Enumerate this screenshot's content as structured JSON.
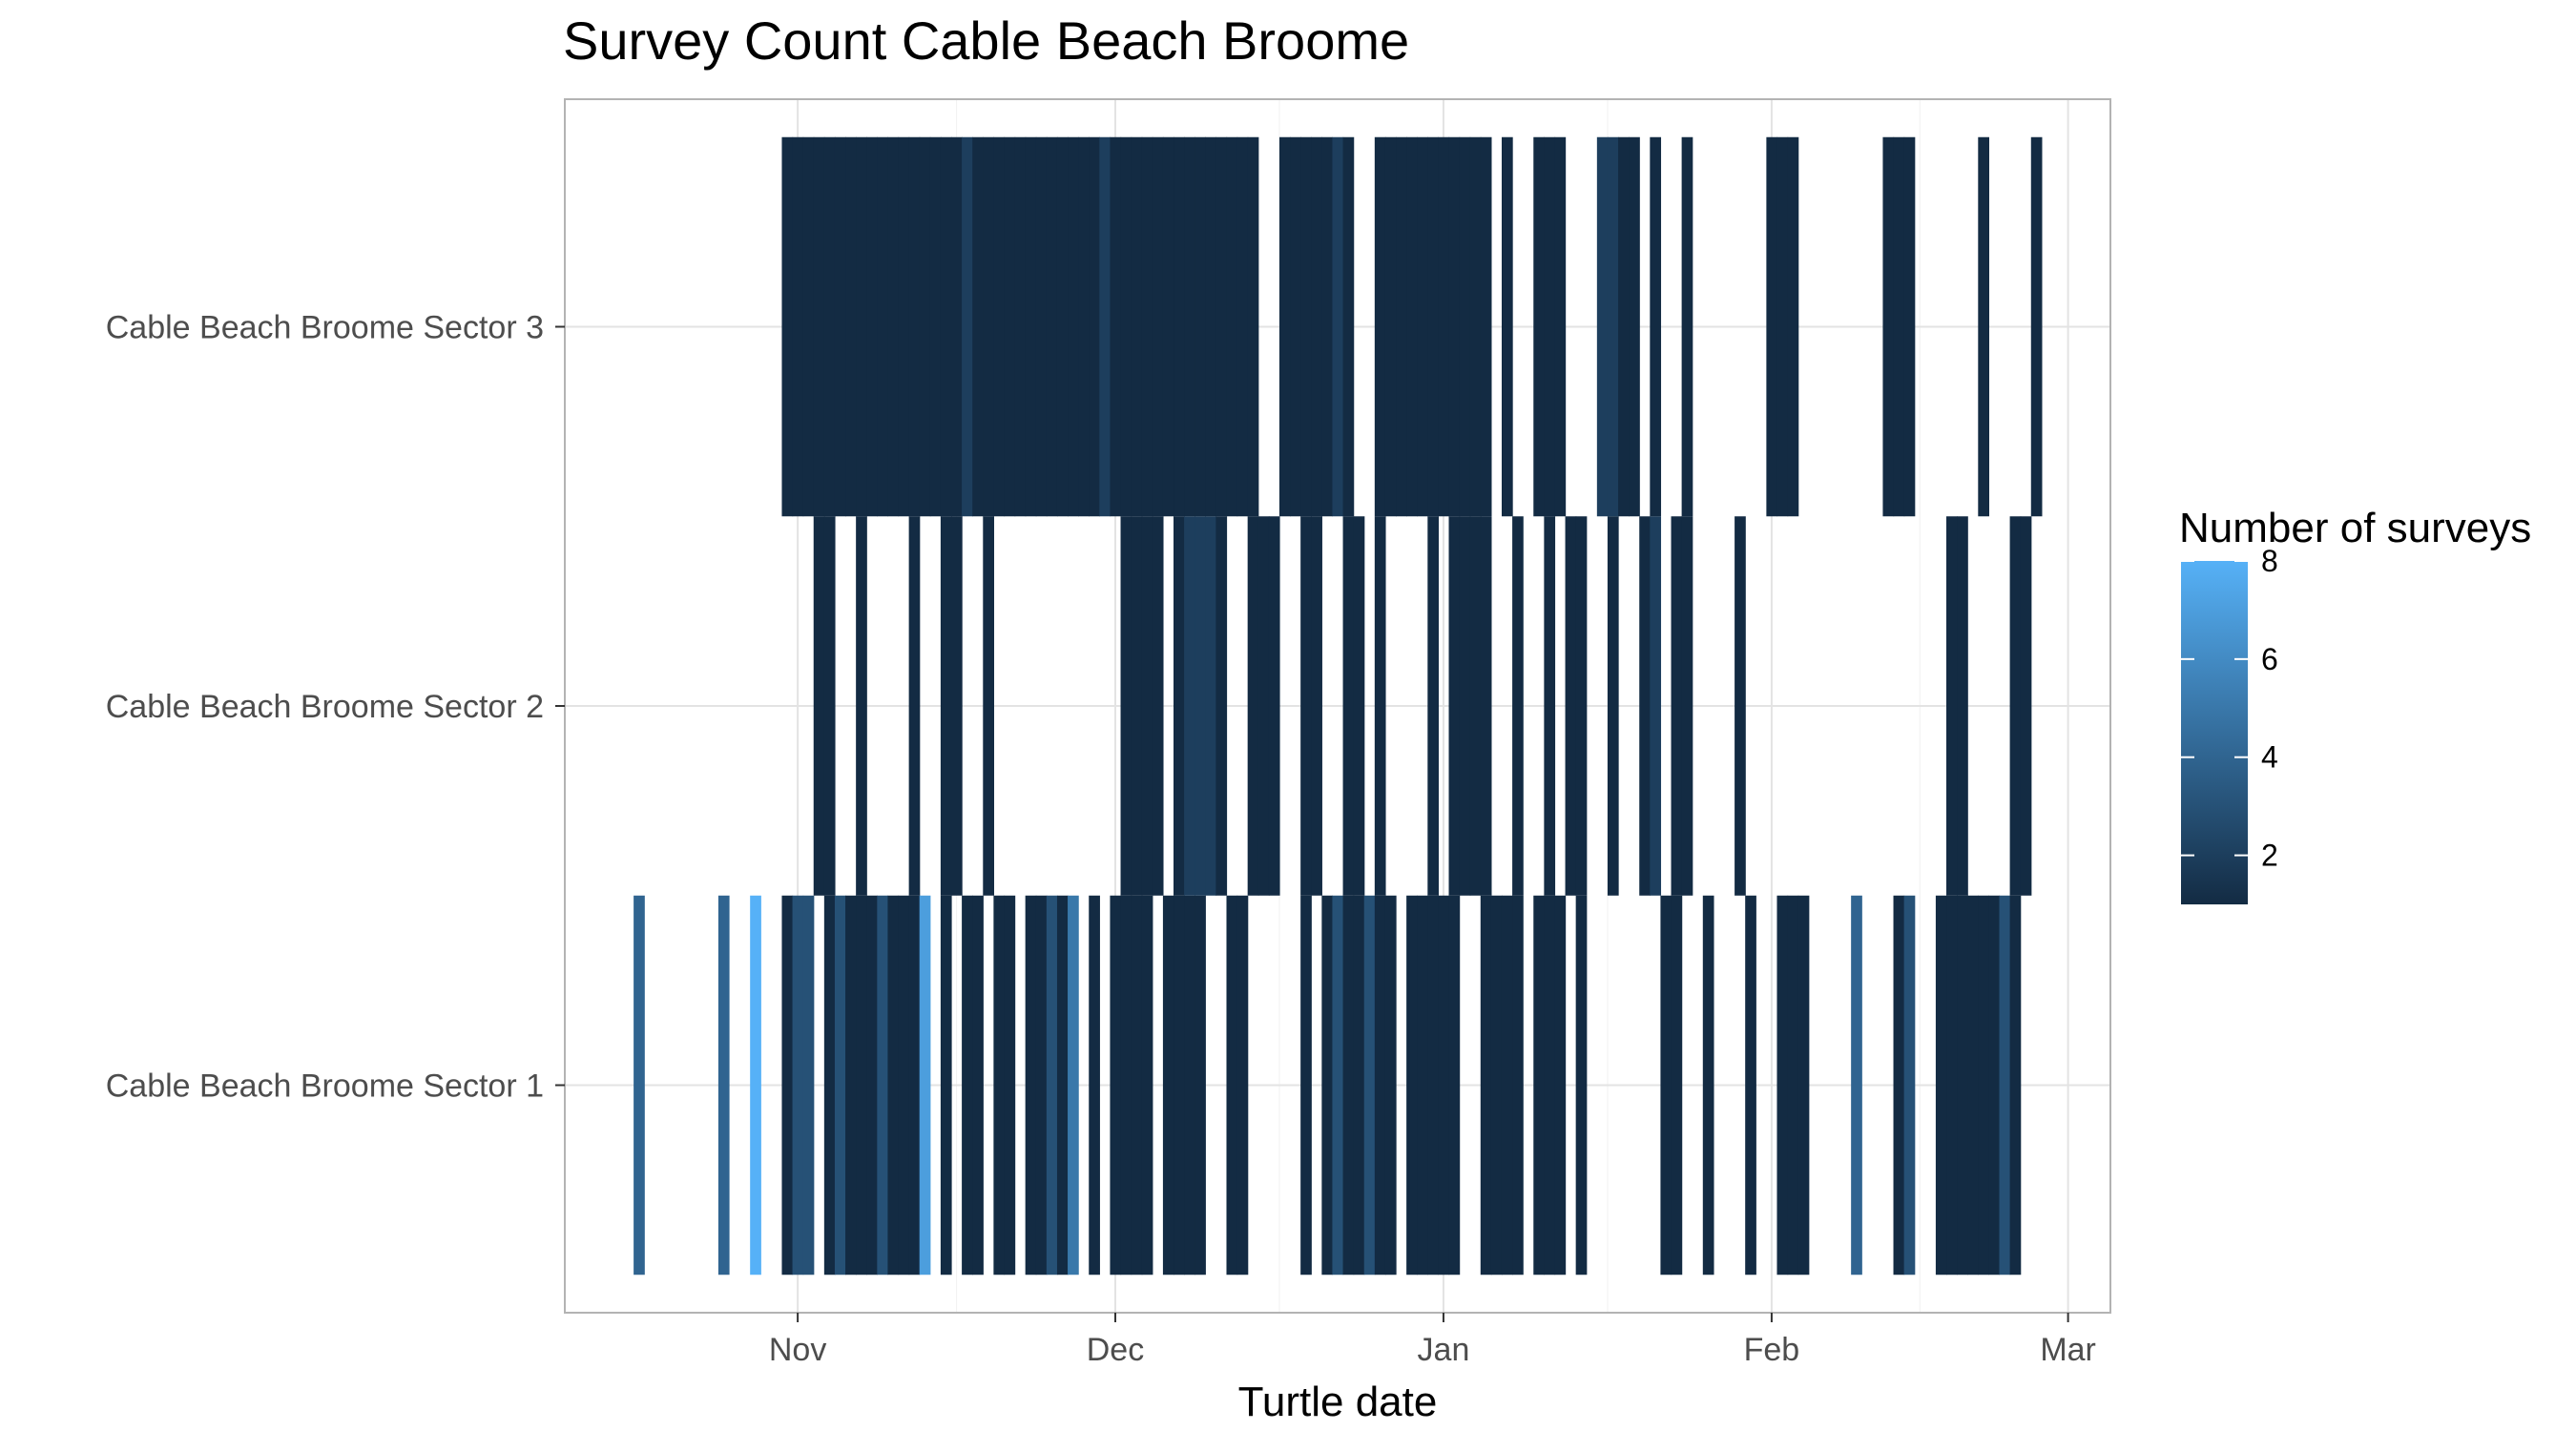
{
  "chart_data": {
    "type": "heatmap",
    "title": "Survey Count Cable Beach Broome",
    "xlabel": "Turtle date",
    "ylabel": "",
    "x_ticks": [
      "Nov",
      "Dec",
      "Jan",
      "Feb",
      "Mar"
    ],
    "x_tick_dates": [
      "2016-11-01",
      "2016-12-01",
      "2017-01-01",
      "2017-02-01",
      "2017-03-01"
    ],
    "xlim": [
      "2016-10-10",
      "2017-03-05"
    ],
    "y_categories": [
      "Cable Beach Broome Sector 1",
      "Cable Beach Broome Sector 2",
      "Cable Beach Broome Sector 3"
    ],
    "grid": true,
    "legend": {
      "title": "Number of surveys",
      "position": "right",
      "range": [
        1,
        8
      ],
      "ticks": [
        2,
        4,
        6,
        8
      ],
      "color_low": "#132B43",
      "color_high": "#56B1F7"
    },
    "series": [
      {
        "sector": "Cable Beach Broome Sector 1",
        "points": [
          [
            "2016-10-17",
            4
          ],
          [
            "2016-10-25",
            4
          ],
          [
            "2016-10-28",
            8
          ],
          [
            "2016-10-31",
            1
          ],
          [
            "2016-11-01",
            3
          ],
          [
            "2016-11-02",
            3
          ],
          [
            "2016-11-04",
            1
          ],
          [
            "2016-11-05",
            3
          ],
          [
            "2016-11-06",
            1
          ],
          [
            "2016-11-07",
            1
          ],
          [
            "2016-11-08",
            1
          ],
          [
            "2016-11-09",
            3
          ],
          [
            "2016-11-10",
            1
          ],
          [
            "2016-11-11",
            1
          ],
          [
            "2016-11-12",
            1
          ],
          [
            "2016-11-13",
            7
          ],
          [
            "2016-11-15",
            1
          ],
          [
            "2016-11-17",
            1
          ],
          [
            "2016-11-18",
            1
          ],
          [
            "2016-11-20",
            1
          ],
          [
            "2016-11-21",
            1
          ],
          [
            "2016-11-23",
            1
          ],
          [
            "2016-11-24",
            1
          ],
          [
            "2016-11-25",
            3
          ],
          [
            "2016-11-26",
            1
          ],
          [
            "2016-11-27",
            5
          ],
          [
            "2016-11-29",
            1
          ],
          [
            "2016-12-01",
            1
          ],
          [
            "2016-12-02",
            1
          ],
          [
            "2016-12-03",
            1
          ],
          [
            "2016-12-04",
            1
          ],
          [
            "2016-12-06",
            1
          ],
          [
            "2016-12-07",
            1
          ],
          [
            "2016-12-08",
            1
          ],
          [
            "2016-12-09",
            1
          ],
          [
            "2016-12-12",
            1
          ],
          [
            "2016-12-13",
            1
          ],
          [
            "2016-12-19",
            1
          ],
          [
            "2016-12-21",
            1
          ],
          [
            "2016-12-22",
            3
          ],
          [
            "2016-12-23",
            1
          ],
          [
            "2016-12-24",
            1
          ],
          [
            "2016-12-25",
            3
          ],
          [
            "2016-12-26",
            1
          ],
          [
            "2016-12-27",
            1
          ],
          [
            "2016-12-29",
            1
          ],
          [
            "2016-12-30",
            1
          ],
          [
            "2016-12-31",
            1
          ],
          [
            "2017-01-01",
            1
          ],
          [
            "2017-01-02",
            1
          ],
          [
            "2017-01-05",
            1
          ],
          [
            "2017-01-06",
            1
          ],
          [
            "2017-01-07",
            1
          ],
          [
            "2017-01-08",
            1
          ],
          [
            "2017-01-10",
            1
          ],
          [
            "2017-01-11",
            1
          ],
          [
            "2017-01-12",
            1
          ],
          [
            "2017-01-14",
            1
          ],
          [
            "2017-01-22",
            1
          ],
          [
            "2017-01-23",
            1
          ],
          [
            "2017-01-26",
            1
          ],
          [
            "2017-01-30",
            1
          ],
          [
            "2017-02-02",
            1
          ],
          [
            "2017-02-03",
            1
          ],
          [
            "2017-02-04",
            1
          ],
          [
            "2017-02-09",
            4
          ],
          [
            "2017-02-13",
            1
          ],
          [
            "2017-02-14",
            3
          ],
          [
            "2017-02-17",
            1
          ],
          [
            "2017-02-18",
            1
          ],
          [
            "2017-02-19",
            1
          ],
          [
            "2017-02-20",
            1
          ],
          [
            "2017-02-21",
            1
          ],
          [
            "2017-02-22",
            1
          ],
          [
            "2017-02-23",
            3
          ],
          [
            "2017-02-24",
            1
          ]
        ]
      },
      {
        "sector": "Cable Beach Broome Sector 2",
        "points": [
          [
            "2016-11-03",
            1
          ],
          [
            "2016-11-04",
            1
          ],
          [
            "2016-11-07",
            1
          ],
          [
            "2016-11-12",
            1
          ],
          [
            "2016-11-15",
            1
          ],
          [
            "2016-11-16",
            1
          ],
          [
            "2016-11-19",
            1
          ],
          [
            "2016-12-02",
            1
          ],
          [
            "2016-12-03",
            1
          ],
          [
            "2016-12-04",
            1
          ],
          [
            "2016-12-05",
            1
          ],
          [
            "2016-12-07",
            1
          ],
          [
            "2016-12-08",
            2
          ],
          [
            "2016-12-09",
            2
          ],
          [
            "2016-12-10",
            2
          ],
          [
            "2016-12-11",
            1
          ],
          [
            "2016-12-14",
            1
          ],
          [
            "2016-12-15",
            1
          ],
          [
            "2016-12-16",
            1
          ],
          [
            "2016-12-19",
            1
          ],
          [
            "2016-12-20",
            1
          ],
          [
            "2016-12-23",
            1
          ],
          [
            "2016-12-24",
            1
          ],
          [
            "2016-12-26",
            1
          ],
          [
            "2016-12-31",
            1
          ],
          [
            "2017-01-02",
            1
          ],
          [
            "2017-01-03",
            1
          ],
          [
            "2017-01-04",
            1
          ],
          [
            "2017-01-05",
            1
          ],
          [
            "2017-01-08",
            1
          ],
          [
            "2017-01-11",
            1
          ],
          [
            "2017-01-13",
            1
          ],
          [
            "2017-01-14",
            1
          ],
          [
            "2017-01-17",
            1
          ],
          [
            "2017-01-20",
            1
          ],
          [
            "2017-01-21",
            2
          ],
          [
            "2017-01-23",
            1
          ],
          [
            "2017-01-24",
            1
          ],
          [
            "2017-01-29",
            1
          ],
          [
            "2017-02-18",
            1
          ],
          [
            "2017-02-19",
            1
          ],
          [
            "2017-02-24",
            1
          ],
          [
            "2017-02-25",
            1
          ]
        ]
      },
      {
        "sector": "Cable Beach Broome Sector 3",
        "points": [
          [
            "2016-10-31",
            1
          ],
          [
            "2016-11-01",
            1
          ],
          [
            "2016-11-02",
            1
          ],
          [
            "2016-11-03",
            1
          ],
          [
            "2016-11-04",
            1
          ],
          [
            "2016-11-05",
            1
          ],
          [
            "2016-11-06",
            1
          ],
          [
            "2016-11-07",
            1
          ],
          [
            "2016-11-08",
            1
          ],
          [
            "2016-11-09",
            1
          ],
          [
            "2016-11-10",
            1
          ],
          [
            "2016-11-11",
            1
          ],
          [
            "2016-11-12",
            1
          ],
          [
            "2016-11-13",
            1
          ],
          [
            "2016-11-14",
            1
          ],
          [
            "2016-11-15",
            1
          ],
          [
            "2016-11-16",
            1
          ],
          [
            "2016-11-17",
            2
          ],
          [
            "2016-11-18",
            1
          ],
          [
            "2016-11-19",
            1
          ],
          [
            "2016-11-20",
            1
          ],
          [
            "2016-11-21",
            1
          ],
          [
            "2016-11-22",
            1
          ],
          [
            "2016-11-23",
            1
          ],
          [
            "2016-11-24",
            1
          ],
          [
            "2016-11-25",
            1
          ],
          [
            "2016-11-26",
            1
          ],
          [
            "2016-11-27",
            1
          ],
          [
            "2016-11-28",
            1
          ],
          [
            "2016-11-29",
            1
          ],
          [
            "2016-11-30",
            2
          ],
          [
            "2016-12-01",
            1
          ],
          [
            "2016-12-02",
            1
          ],
          [
            "2016-12-03",
            1
          ],
          [
            "2016-12-04",
            1
          ],
          [
            "2016-12-05",
            1
          ],
          [
            "2016-12-06",
            1
          ],
          [
            "2016-12-07",
            1
          ],
          [
            "2016-12-08",
            1
          ],
          [
            "2016-12-09",
            1
          ],
          [
            "2016-12-10",
            1
          ],
          [
            "2016-12-11",
            1
          ],
          [
            "2016-12-12",
            1
          ],
          [
            "2016-12-13",
            1
          ],
          [
            "2016-12-14",
            1
          ],
          [
            "2016-12-17",
            1
          ],
          [
            "2016-12-18",
            1
          ],
          [
            "2016-12-19",
            1
          ],
          [
            "2016-12-20",
            1
          ],
          [
            "2016-12-21",
            1
          ],
          [
            "2016-12-22",
            2
          ],
          [
            "2016-12-23",
            1
          ],
          [
            "2016-12-26",
            1
          ],
          [
            "2016-12-27",
            1
          ],
          [
            "2016-12-28",
            1
          ],
          [
            "2016-12-29",
            1
          ],
          [
            "2016-12-30",
            1
          ],
          [
            "2016-12-31",
            1
          ],
          [
            "2017-01-01",
            1
          ],
          [
            "2017-01-02",
            1
          ],
          [
            "2017-01-03",
            1
          ],
          [
            "2017-01-04",
            1
          ],
          [
            "2017-01-05",
            1
          ],
          [
            "2017-01-07",
            1
          ],
          [
            "2017-01-10",
            1
          ],
          [
            "2017-01-11",
            1
          ],
          [
            "2017-01-12",
            1
          ],
          [
            "2017-01-16",
            2
          ],
          [
            "2017-01-17",
            2
          ],
          [
            "2017-01-18",
            1
          ],
          [
            "2017-01-19",
            1
          ],
          [
            "2017-01-21",
            1
          ],
          [
            "2017-01-24",
            1
          ],
          [
            "2017-02-01",
            1
          ],
          [
            "2017-02-02",
            1
          ],
          [
            "2017-02-03",
            1
          ],
          [
            "2017-02-12",
            1
          ],
          [
            "2017-02-13",
            1
          ],
          [
            "2017-02-14",
            1
          ],
          [
            "2017-02-21",
            1
          ],
          [
            "2017-02-26",
            1
          ]
        ]
      }
    ]
  }
}
